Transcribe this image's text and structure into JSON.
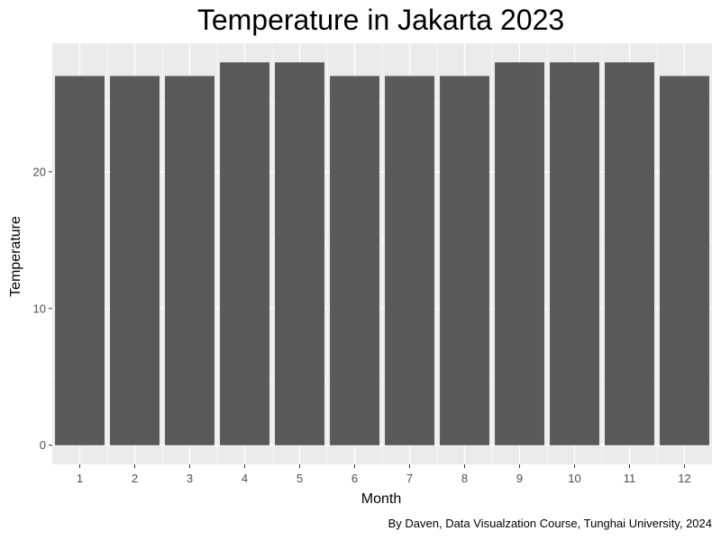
{
  "chart_data": {
    "type": "bar",
    "title": "Temperature in Jakarta 2023",
    "xlabel": "Month",
    "ylabel": "Temperature",
    "caption": "By Daven, Data Visualzation Course, Tunghai University, 2024",
    "categories": [
      "1",
      "2",
      "3",
      "4",
      "5",
      "6",
      "7",
      "8",
      "9",
      "10",
      "11",
      "12"
    ],
    "values": [
      27,
      27,
      27,
      28,
      28,
      27,
      27,
      27,
      28,
      28,
      28,
      27
    ],
    "ylim": [
      -1.4,
      29.4
    ],
    "yticks": [
      0,
      10,
      20
    ],
    "grid": true,
    "colors": {
      "panel_background": "#ebebeb",
      "grid": "#ffffff",
      "bar_fill": "#595959",
      "tick_text": "#4d4d4d"
    }
  }
}
